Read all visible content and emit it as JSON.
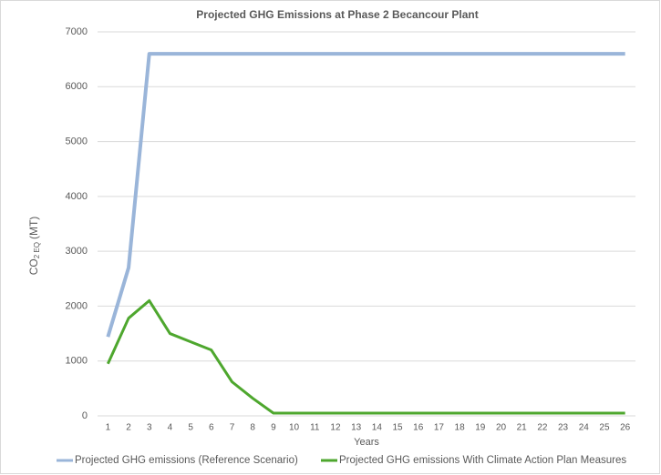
{
  "chart_data": {
    "type": "line",
    "title": "Projected GHG Emissions at Phase 2 Becancour Plant",
    "xlabel": "Years",
    "ylabel": [
      "CO",
      "2 EQ",
      "(MT)"
    ],
    "categories": [
      "1",
      "2",
      "3",
      "4",
      "5",
      "6",
      "7",
      "8",
      "9",
      "10",
      "11",
      "12",
      "13",
      "14",
      "15",
      "16",
      "17",
      "18",
      "19",
      "20",
      "21",
      "22",
      "23",
      "24",
      "25",
      "26"
    ],
    "series": [
      {
        "name": "Projected GHG emissions (Reference Scenario)",
        "color": "#9ab5d9",
        "values": [
          1440,
          2700,
          6600,
          6600,
          6600,
          6600,
          6600,
          6600,
          6600,
          6600,
          6600,
          6600,
          6600,
          6600,
          6600,
          6600,
          6600,
          6600,
          6600,
          6600,
          6600,
          6600,
          6600,
          6600,
          6600,
          6600
        ]
      },
      {
        "name": "Projected GHG emissions With Climate Action Plan Measures",
        "color": "#4ea72e",
        "values": [
          950,
          1780,
          2100,
          1500,
          1350,
          1200,
          620,
          320,
          50,
          50,
          50,
          50,
          50,
          50,
          50,
          50,
          50,
          50,
          50,
          50,
          50,
          50,
          50,
          50,
          50,
          50
        ]
      }
    ],
    "ylim": [
      0,
      7000
    ],
    "yticks": [
      0,
      1000,
      2000,
      3000,
      4000,
      5000,
      6000,
      7000
    ],
    "grid": true,
    "legend": "bottom"
  }
}
